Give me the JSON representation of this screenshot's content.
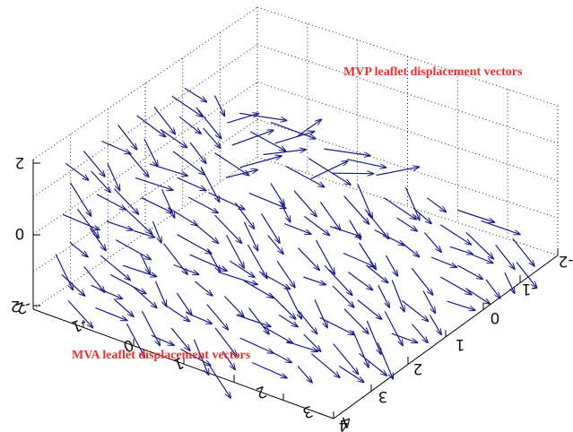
{
  "chart_data": {
    "type": "quiver3d",
    "title": "",
    "annotations": {
      "mvp": "MVP leaflet displacement vectors",
      "mva": "MVA leaflet displacement vectors"
    },
    "vector_color": "#1a1a8c",
    "annotation_color": "#e8312f",
    "grid": true,
    "z_ticks": [
      "2",
      "0",
      "-2"
    ],
    "left_axis_ticks": [
      "-2",
      "-1",
      "0",
      "1",
      "2",
      "3",
      "4"
    ],
    "right_axis_ticks": [
      "-2",
      "-1",
      "0",
      "1",
      "2",
      "3",
      "4"
    ],
    "x_range": [
      -2,
      4
    ],
    "y_range": [
      -2,
      4
    ],
    "z_range": [
      -2,
      2
    ]
  }
}
